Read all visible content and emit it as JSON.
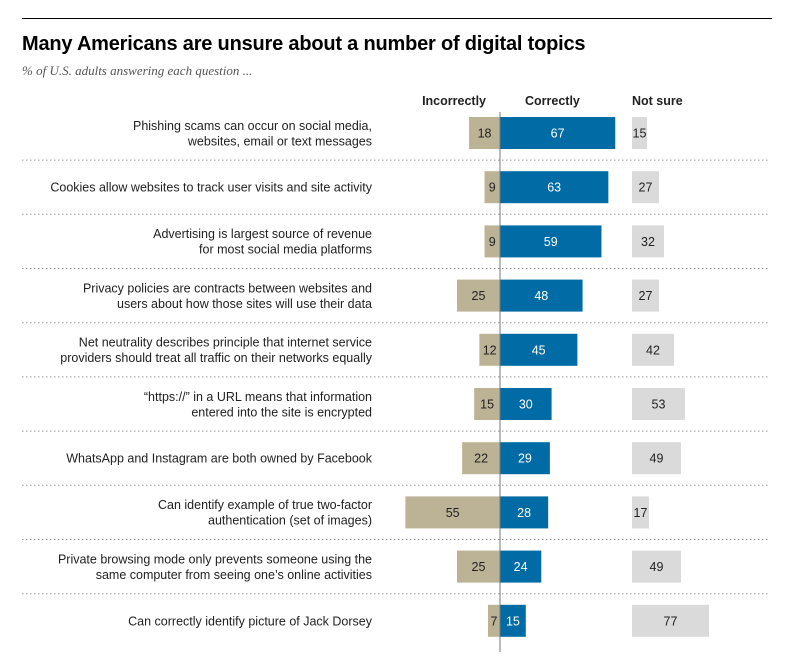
{
  "colors": {
    "incorrect": "#bcb295",
    "correct": "#006ba5",
    "not_sure": "#dadada",
    "divider": "#9a9a9a",
    "baseline": "#777777"
  },
  "chart_data": {
    "type": "bar",
    "title": "Many Americans are unsure about a number of digital topics",
    "subtitle": "% of U.S. adults answering each question ...",
    "column_headers": [
      "Incorrectly",
      "Correctly",
      "Not sure"
    ],
    "categories": [
      [
        "Phishing scams can occur on social media,",
        "websites, email or text messages"
      ],
      [
        "Cookies allow websites to track user visits and site activity"
      ],
      [
        "Advertising is largest source of revenue",
        "for most social media platforms"
      ],
      [
        "Privacy policies are contracts between websites and",
        "users about how those sites will use their data"
      ],
      [
        "Net neutrality describes principle that internet service",
        "providers should treat all traffic on their networks equally"
      ],
      [
        "“https://” in a URL means that information",
        "entered into the site is encrypted"
      ],
      [
        "WhatsApp and Instagram are both owned by Facebook"
      ],
      [
        "Can identify example of true two-factor",
        "authentication (set of images)"
      ],
      [
        "Private browsing mode only prevents someone using the",
        "same computer from seeing one’s online activities"
      ],
      [
        "Can correctly identify picture of Jack Dorsey"
      ]
    ],
    "series": [
      {
        "name": "Incorrectly",
        "values": [
          18,
          9,
          9,
          25,
          12,
          15,
          22,
          55,
          25,
          7
        ]
      },
      {
        "name": "Correctly",
        "values": [
          67,
          63,
          59,
          48,
          45,
          30,
          29,
          28,
          24,
          15
        ]
      },
      {
        "name": "Not sure",
        "values": [
          15,
          27,
          32,
          27,
          42,
          53,
          49,
          17,
          49,
          77
        ]
      }
    ],
    "unit": "%"
  }
}
